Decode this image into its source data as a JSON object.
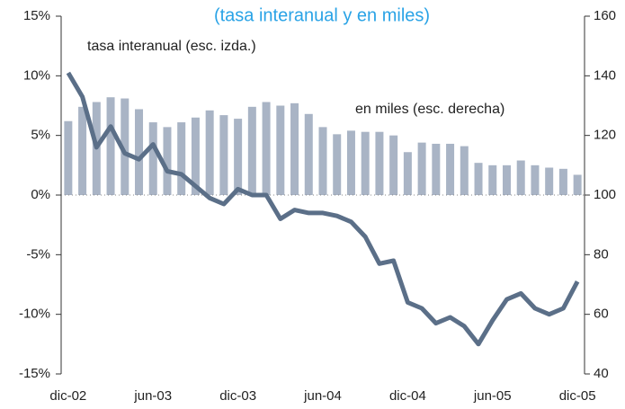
{
  "chart_data": {
    "type": "bar-line",
    "title": "(tasa interanual y en miles)",
    "annotations": [
      "tasa interanual (esc. izda.)",
      "en miles (esc. derecha)"
    ],
    "categories": [
      "dic-02",
      null,
      null,
      null,
      null,
      null,
      "jun-03",
      null,
      null,
      null,
      null,
      null,
      "dic-03",
      null,
      null,
      null,
      null,
      null,
      "jun-04",
      null,
      null,
      null,
      null,
      null,
      "dic-04",
      null,
      null,
      null,
      null,
      null,
      "jun-05",
      null,
      null,
      null,
      null,
      null,
      "dic-05"
    ],
    "series": [
      {
        "name": "tasa interanual (esc. izda.)",
        "type": "bar",
        "color": "#a9b4c5",
        "axis": "y",
        "values": [
          6.2,
          7.4,
          7.8,
          8.2,
          8.1,
          7.2,
          6.1,
          5.7,
          6.1,
          6.5,
          7.1,
          6.7,
          6.4,
          7.4,
          7.8,
          7.5,
          7.7,
          6.8,
          5.7,
          5.1,
          5.4,
          5.3,
          5.3,
          5.0,
          3.6,
          4.4,
          4.3,
          4.3,
          4.1,
          2.7,
          2.5,
          2.5,
          2.9,
          2.5,
          2.3,
          2.2,
          1.7
        ]
      },
      {
        "name": "en miles (esc. derecha)",
        "type": "line",
        "color": "#5b6f88",
        "axis": "y2",
        "values": [
          141,
          133,
          116,
          123,
          114,
          112,
          117,
          108,
          107,
          103,
          99,
          97,
          102,
          100,
          100,
          92,
          95,
          94,
          94,
          93,
          91,
          86,
          77,
          78,
          64,
          62,
          57,
          59,
          56,
          50,
          58,
          65,
          67,
          62,
          60,
          62,
          71
        ]
      }
    ],
    "ylim": [
      -15,
      15
    ],
    "yticks": [
      {
        "value": -15,
        "label": "-15%"
      },
      {
        "value": -10,
        "label": "-10%"
      },
      {
        "value": -5,
        "label": "-5%"
      },
      {
        "value": 0,
        "label": "0%"
      },
      {
        "value": 5,
        "label": "5%"
      },
      {
        "value": 10,
        "label": "10%"
      },
      {
        "value": 15,
        "label": "15%"
      }
    ],
    "y2lim": [
      40,
      160
    ],
    "y2ticks": [
      40,
      60,
      80,
      100,
      120,
      140,
      160
    ],
    "zero_line": true
  }
}
